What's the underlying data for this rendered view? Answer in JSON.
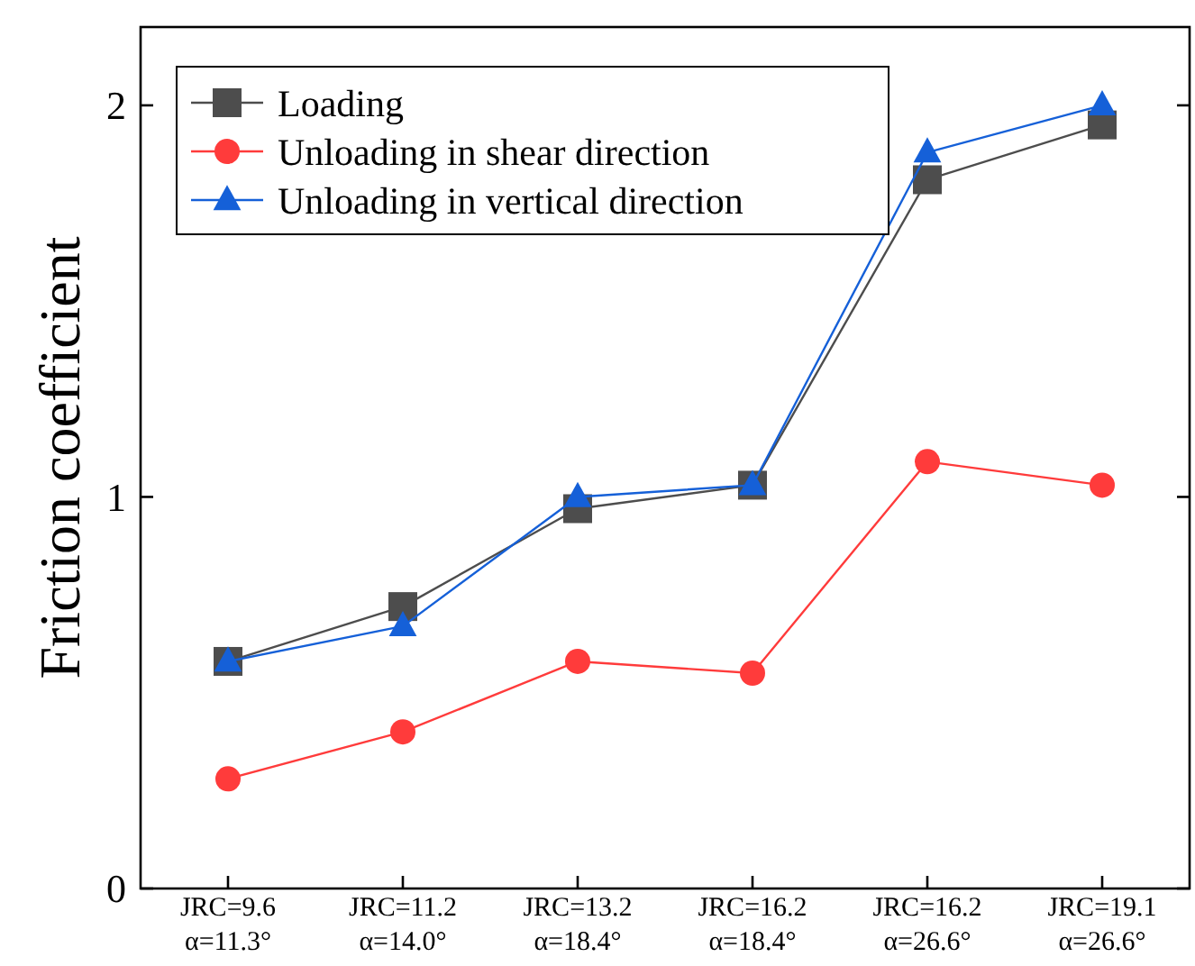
{
  "chart_data": {
    "type": "line",
    "ylabel": "Friction coefficient",
    "categories": [
      "JRC=9.6\nα=11.3°",
      "JRC=11.2\nα=14.0°",
      "JRC=13.2\nα=18.4°",
      "JRC=16.2\nα=18.4°",
      "JRC=16.2\nα=26.6°",
      "JRC=19.1\nα=26.6°"
    ],
    "series": [
      {
        "name": "Loading",
        "color": "#4d4d4d",
        "marker": "square",
        "values": [
          0.58,
          0.72,
          0.97,
          1.03,
          1.81,
          1.95
        ]
      },
      {
        "name": "Unloading in shear direction",
        "color": "#ff3b3b",
        "marker": "circle",
        "values": [
          0.28,
          0.4,
          0.58,
          0.55,
          1.09,
          1.03
        ]
      },
      {
        "name": "Unloading in vertical direction",
        "color": "#1560d8",
        "marker": "triangle",
        "values": [
          0.58,
          0.67,
          1.0,
          1.03,
          1.88,
          2.0
        ]
      }
    ],
    "ylim": [
      0,
      2.2
    ],
    "yticks": [
      0,
      1,
      2
    ],
    "legend": "top left",
    "grid": false
  }
}
